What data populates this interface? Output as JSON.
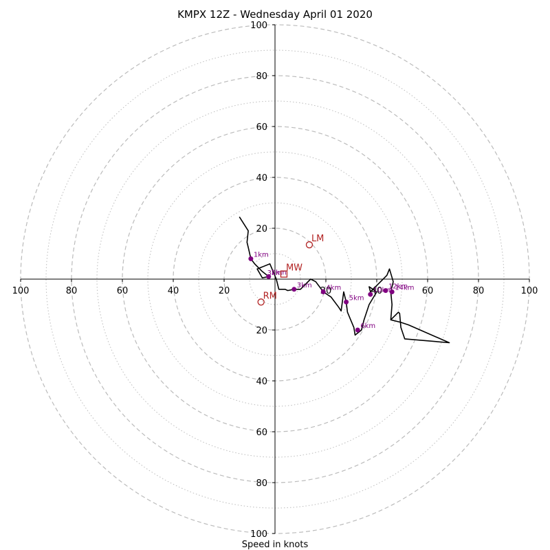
{
  "chart_data": {
    "type": "hodograph",
    "title": "KMPX 12Z - Wednesday April 01 2020",
    "xlabel": "Speed in knots",
    "units": "knots",
    "range": [
      -100,
      100
    ],
    "rings_dashed": [
      20,
      40,
      60,
      80,
      100
    ],
    "rings_dotted": [
      10,
      30,
      50,
      70,
      90
    ],
    "tick_labels": {
      "x": [
        "100",
        "80",
        "60",
        "40",
        "20",
        "20",
        "40",
        "60",
        "80",
        "100"
      ],
      "y": [
        "100",
        "80",
        "60",
        "40",
        "20",
        "20",
        "40",
        "60",
        "80",
        "100"
      ]
    },
    "hodograph_trace": [
      [
        -14,
        24.5
      ],
      [
        -10.5,
        19
      ],
      [
        -11,
        14.5
      ],
      [
        -10.5,
        12.5
      ],
      [
        -9.5,
        8
      ],
      [
        -8,
        6
      ],
      [
        -5,
        3
      ],
      [
        -2.5,
        1
      ],
      [
        -5,
        0.5
      ],
      [
        -7,
        4
      ],
      [
        -2,
        6
      ],
      [
        0.5,
        0
      ],
      [
        1.5,
        -4
      ],
      [
        3,
        -4
      ],
      [
        4,
        -4
      ],
      [
        5,
        -4.5
      ],
      [
        7.5,
        -4
      ],
      [
        10,
        -4
      ],
      [
        12,
        -2
      ],
      [
        14,
        0
      ],
      [
        16,
        -1
      ],
      [
        19,
        -5
      ],
      [
        22,
        -7
      ],
      [
        25,
        -11
      ],
      [
        26,
        -12.5
      ],
      [
        27,
        -5
      ],
      [
        28,
        -9
      ],
      [
        28.5,
        -13
      ],
      [
        31,
        -19
      ],
      [
        31.5,
        -22
      ],
      [
        34,
        -20
      ],
      [
        35,
        -16
      ],
      [
        37,
        -10
      ],
      [
        40,
        -5
      ],
      [
        37,
        -3
      ],
      [
        37.5,
        -5
      ],
      [
        41,
        -1.5
      ],
      [
        44,
        1.5
      ],
      [
        45,
        4
      ],
      [
        46.5,
        -1
      ],
      [
        45.5,
        -5
      ],
      [
        46,
        -10
      ],
      [
        45.5,
        -16
      ],
      [
        49.5,
        -17
      ],
      [
        52.5,
        -18
      ],
      [
        68.5,
        -25
      ],
      [
        51,
        -23.5
      ],
      [
        49.5,
        -19
      ],
      [
        49,
        -13.5
      ],
      [
        48.5,
        -13
      ],
      [
        47.5,
        -14
      ],
      [
        45.5,
        -16
      ]
    ],
    "height_markers": [
      {
        "label": "1km",
        "u": -9.5,
        "v": 8
      },
      {
        "label": "2km",
        "u": -2.5,
        "v": 1
      },
      {
        "label": "3km",
        "u": 7.5,
        "v": -4
      },
      {
        "label": "4km",
        "u": 19,
        "v": -5
      },
      {
        "label": "5km",
        "u": 28,
        "v": -9
      },
      {
        "label": "6km",
        "u": 32.5,
        "v": -20
      },
      {
        "label": "10km",
        "u": 37.5,
        "v": -6
      },
      {
        "label": "12km",
        "u": 43.5,
        "v": -4.5
      },
      {
        "label": "14km",
        "u": 46,
        "v": -5
      }
    ],
    "stray_labels": [
      {
        "text": "3km",
        "u": -2,
        "v": 2.5
      },
      {
        "text": "0",
        "u": 19,
        "v": -5
      }
    ],
    "storm_markers": [
      {
        "label": "LM",
        "u": 13.5,
        "v": 13.5,
        "shape": "circle"
      },
      {
        "label": "MW",
        "u": 3.5,
        "v": 2,
        "shape": "square"
      },
      {
        "label": "RM",
        "u": -5.5,
        "v": -9,
        "shape": "circle"
      }
    ],
    "colors": {
      "trace": "#000000",
      "height_markers": "#800080",
      "storm_markers": "#b22222",
      "rings": "#bbbbbb"
    }
  }
}
